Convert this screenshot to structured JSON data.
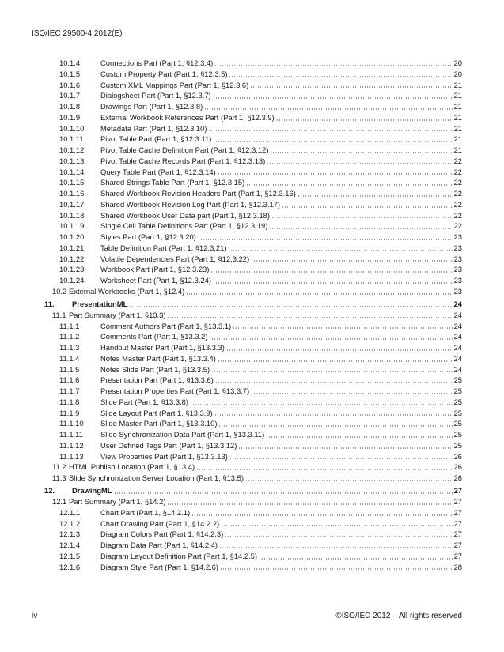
{
  "header": {
    "doc_id": "ISO/IEC 29500-4:2012(E)"
  },
  "toc": [
    {
      "level": 3,
      "num": "10.1.4",
      "title": "Connections Part (Part 1, §12.3.4)",
      "page": "20"
    },
    {
      "level": 3,
      "num": "10.1.5",
      "title": "Custom Property Part (Part 1, §12.3.5)",
      "page": "20"
    },
    {
      "level": 3,
      "num": "10.1.6",
      "title": "Custom XML Mappings Part (Part 1, §12.3.6)",
      "page": "21"
    },
    {
      "level": 3,
      "num": "10.1.7",
      "title": "Dialogsheet Part (Part 1, §12.3.7)",
      "page": "21"
    },
    {
      "level": 3,
      "num": "10.1.8",
      "title": "Drawings Part (Part 1, §12.3.8)",
      "page": "21"
    },
    {
      "level": 3,
      "num": "10.1.9",
      "title": "External Workbook References Part (Part 1, §12.3.9)",
      "page": "21"
    },
    {
      "level": 3,
      "num": "10.1.10",
      "title": "Metadata Part (Part 1, §12.3.10)",
      "page": "21"
    },
    {
      "level": 3,
      "num": "10.1.11",
      "title": "Pivot Table Part (Part 1, §12.3.11)",
      "page": "21"
    },
    {
      "level": 3,
      "num": "10.1.12",
      "title": "Pivot Table Cache Definition Part (Part 1, §12.3.12)",
      "page": "21"
    },
    {
      "level": 3,
      "num": "10.1.13",
      "title": "Pivot Table Cache Records Part (Part 1, §12.3.13)",
      "page": "22"
    },
    {
      "level": 3,
      "num": "10.1.14",
      "title": "Query Table Part (Part 1, §12.3.14)",
      "page": "22"
    },
    {
      "level": 3,
      "num": "10.1.15",
      "title": "Shared Strings Table Part (Part 1, §12.3.15)",
      "page": "22"
    },
    {
      "level": 3,
      "num": "10.1.16",
      "title": "Shared Workbook Revision Headers Part (Part 1, §12.3.16)",
      "page": "22"
    },
    {
      "level": 3,
      "num": "10.1.17",
      "title": "Shared Workbook Revision Log Part (Part 1, §12.3.17)",
      "page": "22"
    },
    {
      "level": 3,
      "num": "10.1.18",
      "title": "Shared Workbook User Data part (Part 1, §12.3.18)",
      "page": "22"
    },
    {
      "level": 3,
      "num": "10.1.19",
      "title": "Single Cell Table Definitions Part (Part 1, §12.3.19)",
      "page": "22"
    },
    {
      "level": 3,
      "num": "10.1.20",
      "title": "Styles Part (Part 1, §12.3.20)",
      "page": "23"
    },
    {
      "level": 3,
      "num": "10.1.21",
      "title": "Table Definition Part (Part 1, §12.3.21)",
      "page": "23"
    },
    {
      "level": 3,
      "num": "10.1.22",
      "title": "Volatile Dependencies Part (Part 1, §12.3.22)",
      "page": "23"
    },
    {
      "level": 3,
      "num": "10.1.23",
      "title": "Workbook Part (Part 1, §12.3.23)",
      "page": "23"
    },
    {
      "level": 3,
      "num": "10.1.24",
      "title": "Worksheet Part (Part 1, §12.3.24)",
      "page": "23"
    },
    {
      "level": 2,
      "num": "10.2",
      "title": "External Workbooks (Part 1, §12.4)",
      "page": "23"
    },
    {
      "level": 1,
      "num": "11.",
      "title": "PresentationML",
      "page": "24"
    },
    {
      "level": 2,
      "num": "11.1",
      "title": "Part Summary (Part 1, §13.3)",
      "page": "24"
    },
    {
      "level": 3,
      "num": "11.1.1",
      "title": "Comment Authors Part (Part 1, §13.3.1)",
      "page": "24"
    },
    {
      "level": 3,
      "num": "11.1.2",
      "title": "Comments Part (Part 1, §13.3.2)",
      "page": "24"
    },
    {
      "level": 3,
      "num": "11.1.3",
      "title": "Handout Master Part (Part 1, §13.3.3)",
      "page": "24"
    },
    {
      "level": 3,
      "num": "11.1.4",
      "title": "Notes Master Part (Part 1, §13.3.4)",
      "page": "24"
    },
    {
      "level": 3,
      "num": "11.1.5",
      "title": "Notes Slide Part (Part 1, §13.3.5)",
      "page": "24"
    },
    {
      "level": 3,
      "num": "11.1.6",
      "title": "Presentation Part (Part 1, §13.3.6)",
      "page": "25"
    },
    {
      "level": 3,
      "num": "11.1.7",
      "title": "Presentation Properties Part (Part 1, §13.3.7)",
      "page": "25"
    },
    {
      "level": 3,
      "num": "11.1.8",
      "title": "Slide Part (Part 1, §13.3.8)",
      "page": "25"
    },
    {
      "level": 3,
      "num": "11.1.9",
      "title": "Slide Layout Part (Part 1, §13.3.9)",
      "page": "25"
    },
    {
      "level": 3,
      "num": "11.1.10",
      "title": "Slide Master Part (Part 1, §13.3.10)",
      "page": "25"
    },
    {
      "level": 3,
      "num": "11.1.11",
      "title": "Slide Synchronization Data Part (Part 1, §13.3.11)",
      "page": "25"
    },
    {
      "level": 3,
      "num": "11.1.12",
      "title": "User Defined Tags Part (Part 1, §13.3.12)",
      "page": "25"
    },
    {
      "level": 3,
      "num": "11.1.13",
      "title": "View Properties Part (Part 1, §13.3.13)",
      "page": "26"
    },
    {
      "level": 2,
      "num": "11.2",
      "title": "HTML Publish Location (Part 1, §13.4)",
      "page": "26"
    },
    {
      "level": 2,
      "num": "11.3",
      "title": "Slide Synchronization Server Location (Part 1, §13.5)",
      "page": "26"
    },
    {
      "level": 1,
      "num": "12.",
      "title": "DrawingML",
      "page": "27"
    },
    {
      "level": 2,
      "num": "12.1",
      "title": "Part Summary (Part 1, §14.2)",
      "page": "27"
    },
    {
      "level": 3,
      "num": "12.1.1",
      "title": "Chart Part (Part 1, §14.2.1)",
      "page": "27"
    },
    {
      "level": 3,
      "num": "12.1.2",
      "title": "Chart Drawing Part (Part 1, §14.2.2)",
      "page": "27"
    },
    {
      "level": 3,
      "num": "12.1.3",
      "title": "Diagram Colors Part (Part 1, §14.2.3)",
      "page": "27"
    },
    {
      "level": 3,
      "num": "12.1.4",
      "title": "Diagram Data Part (Part 1, §14.2.4)",
      "page": "27"
    },
    {
      "level": 3,
      "num": "12.1.5",
      "title": "Diagram Layout Definition Part (Part 1, §14.2.5)",
      "page": "27"
    },
    {
      "level": 3,
      "num": "12.1.6",
      "title": "Diagram Style Part (Part 1, §14.2.6)",
      "page": "28"
    }
  ],
  "footer": {
    "page_label": "iv",
    "copyright": "©ISO/IEC 2012 – All rights reserved"
  }
}
